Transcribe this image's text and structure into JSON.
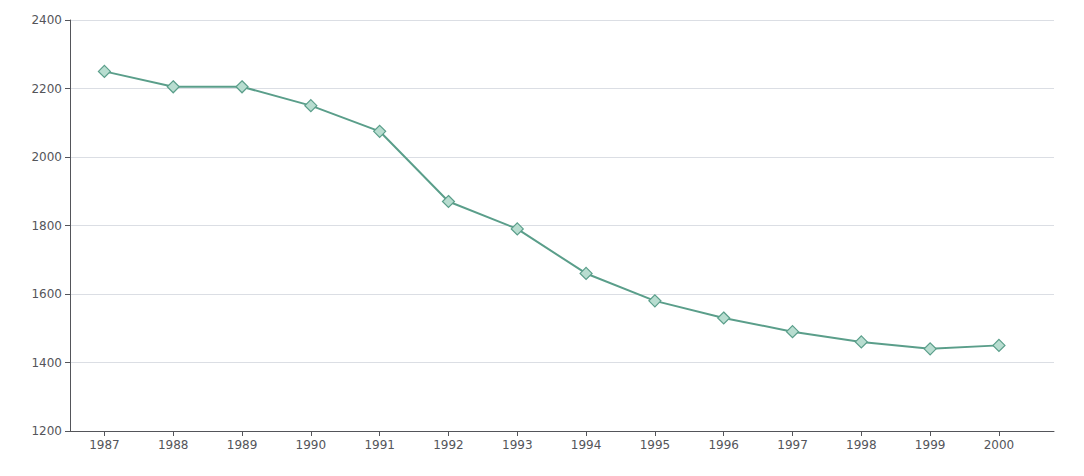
{
  "chart_data": {
    "type": "line",
    "x": [
      1987,
      1988,
      1989,
      1990,
      1991,
      1992,
      1993,
      1994,
      1995,
      1996,
      1997,
      1998,
      1999,
      2000
    ],
    "values": [
      2250,
      2205,
      2205,
      2150,
      2075,
      1870,
      1790,
      1660,
      1580,
      1530,
      1490,
      1460,
      1440,
      1450
    ],
    "color": "#5a9e8a",
    "marker": "diamond",
    "xlim": [
      1986.5,
      2000.8
    ],
    "xticks": [
      1987,
      1988,
      1989,
      1990,
      1991,
      1992,
      1993,
      1994,
      1995,
      1996,
      1997,
      1998,
      1999,
      2000
    ],
    "ylim": [
      1200,
      2400
    ],
    "yticks": [
      1200,
      1400,
      1600,
      1800,
      2000,
      2200,
      2400
    ],
    "grid": true
  }
}
